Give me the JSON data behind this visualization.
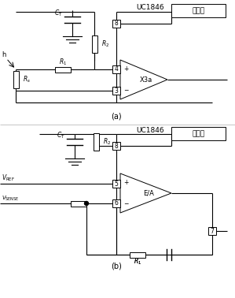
{
  "bg_color": "#ffffff",
  "line_color": "#000000",
  "fig_width": 2.99,
  "fig_height": 3.78,
  "dpi": 100,
  "label_a": "(a)",
  "label_b": "(b)",
  "uc1846_label": "UC1846",
  "osc_label": "振荡器",
  "x3a_label": "X3a",
  "ea_label": "E/A",
  "pin8_label": "8",
  "pin4_label": "4",
  "pin3_label": "3",
  "pin5_label": "5",
  "pin6_label": "6",
  "pin7_label": "7"
}
